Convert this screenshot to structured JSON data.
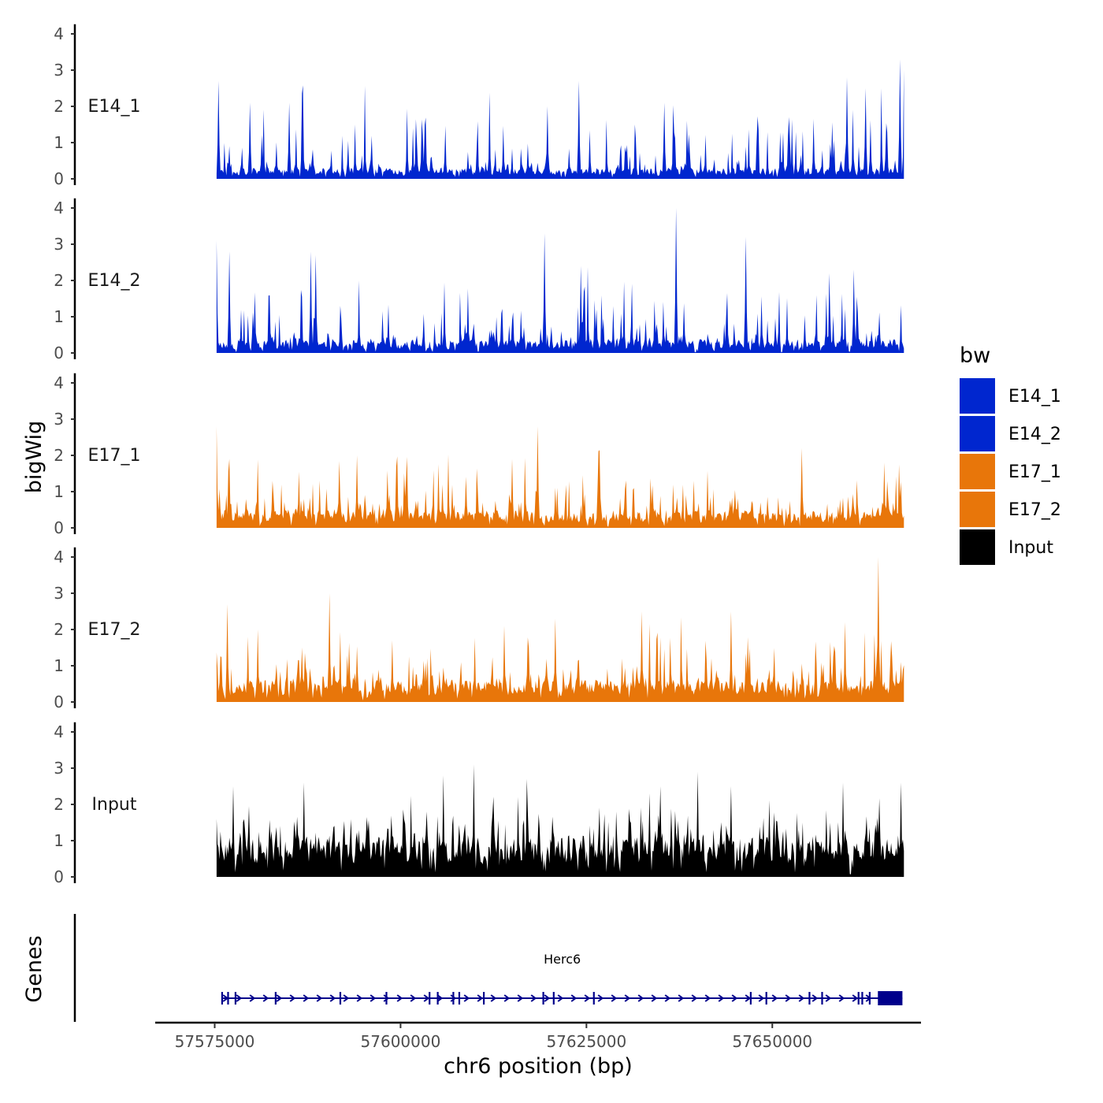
{
  "chart_data": {
    "type": "area",
    "chromosome": "chr6",
    "xlabel": "chr6 position (bp)",
    "ylabel": "bigWig",
    "genes_label": "Genes",
    "xlim": [
      57567000,
      57670000
    ],
    "data_range": [
      57575250,
      57667700
    ],
    "x_ticks": [
      57575000,
      57600000,
      57625000,
      57650000
    ],
    "x_tick_labels": [
      "57575000",
      "57600000",
      "57625000",
      "57650000"
    ],
    "ylim": [
      0,
      4.2
    ],
    "y_ticks": [
      0,
      1,
      2,
      3,
      4
    ],
    "y_tick_labels": [
      "0",
      "1",
      "2",
      "3",
      "4"
    ],
    "legend": {
      "title": "bw",
      "entries": [
        {
          "name": "E14_1",
          "color": "#0026CF"
        },
        {
          "name": "E14_2",
          "color": "#0026CF"
        },
        {
          "name": "E17_1",
          "color": "#E8760A"
        },
        {
          "name": "E17_2",
          "color": "#E8760A"
        },
        {
          "name": "Input",
          "color": "#000000"
        }
      ]
    },
    "tracks": [
      {
        "name": "E14_1",
        "color": "#0026CF",
        "seed": 11,
        "base": 0.25,
        "spike_prob": 0.22,
        "spike_scale": 1.4,
        "peaks": [
          [
            57575450,
            2.7
          ],
          [
            57579800,
            2.1
          ],
          [
            57585000,
            2.1
          ],
          [
            57619800,
            2.0
          ],
          [
            57624000,
            2.7
          ],
          [
            57635500,
            2.1
          ],
          [
            57660100,
            2.8
          ],
          [
            57662500,
            2.5
          ],
          [
            57667200,
            3.3
          ]
        ]
      },
      {
        "name": "E14_2",
        "color": "#0026CF",
        "seed": 23,
        "base": 0.3,
        "spike_prob": 0.2,
        "spike_scale": 1.3,
        "peaks": [
          [
            57575300,
            3.1
          ],
          [
            57577000,
            2.8
          ],
          [
            57587900,
            2.8
          ],
          [
            57588600,
            2.7
          ],
          [
            57619300,
            3.3
          ],
          [
            57624300,
            2.4
          ],
          [
            57637000,
            4.0
          ],
          [
            57646500,
            3.2
          ],
          [
            57661000,
            2.3
          ]
        ]
      },
      {
        "name": "E17_1",
        "color": "#E8760A",
        "seed": 37,
        "base": 0.4,
        "spike_prob": 0.25,
        "spike_scale": 1.1,
        "peaks": [
          [
            57575200,
            2.8
          ],
          [
            57577000,
            1.9
          ],
          [
            57594200,
            2.0
          ],
          [
            57615000,
            1.9
          ],
          [
            57618400,
            2.8
          ],
          [
            57654000,
            2.2
          ],
          [
            57665000,
            1.8
          ]
        ]
      },
      {
        "name": "E17_2",
        "color": "#E8760A",
        "seed": 53,
        "base": 0.5,
        "spike_prob": 0.25,
        "spike_scale": 1.2,
        "peaks": [
          [
            57576700,
            2.7
          ],
          [
            57580800,
            2.0
          ],
          [
            57590500,
            3.0
          ],
          [
            57614000,
            2.1
          ],
          [
            57617300,
            1.5
          ],
          [
            57620800,
            2.3
          ],
          [
            57632500,
            2.5
          ],
          [
            57644500,
            2.5
          ],
          [
            57659800,
            2.2
          ],
          [
            57664300,
            4.0
          ]
        ]
      },
      {
        "name": "Input",
        "color": "#000000",
        "seed": 71,
        "base": 0.9,
        "spike_prob": 0.3,
        "spike_scale": 1.0,
        "peaks": [
          [
            57575300,
            1.6
          ],
          [
            57577500,
            2.5
          ],
          [
            57587000,
            2.6
          ],
          [
            57605800,
            2.8
          ],
          [
            57609800,
            3.1
          ],
          [
            57617000,
            2.7
          ],
          [
            57635000,
            2.5
          ],
          [
            57640000,
            2.9
          ],
          [
            57644500,
            2.5
          ],
          [
            57659500,
            2.6
          ],
          [
            57667300,
            2.6
          ]
        ]
      }
    ],
    "genes": [
      {
        "name": "Herc6",
        "strand": "+",
        "start": 57576000,
        "end": 57667500,
        "exons": [
          57576000,
          57576800,
          57577800,
          57583200,
          57591900,
          57598100,
          57603900,
          57605000,
          57607100,
          57607900,
          57611200,
          57619200,
          57620600,
          57626000,
          57647100,
          57649200,
          57655000,
          57656700,
          57661600,
          57662100,
          57663100
        ],
        "terminal_block": [
          57664200,
          57667500
        ]
      }
    ]
  }
}
